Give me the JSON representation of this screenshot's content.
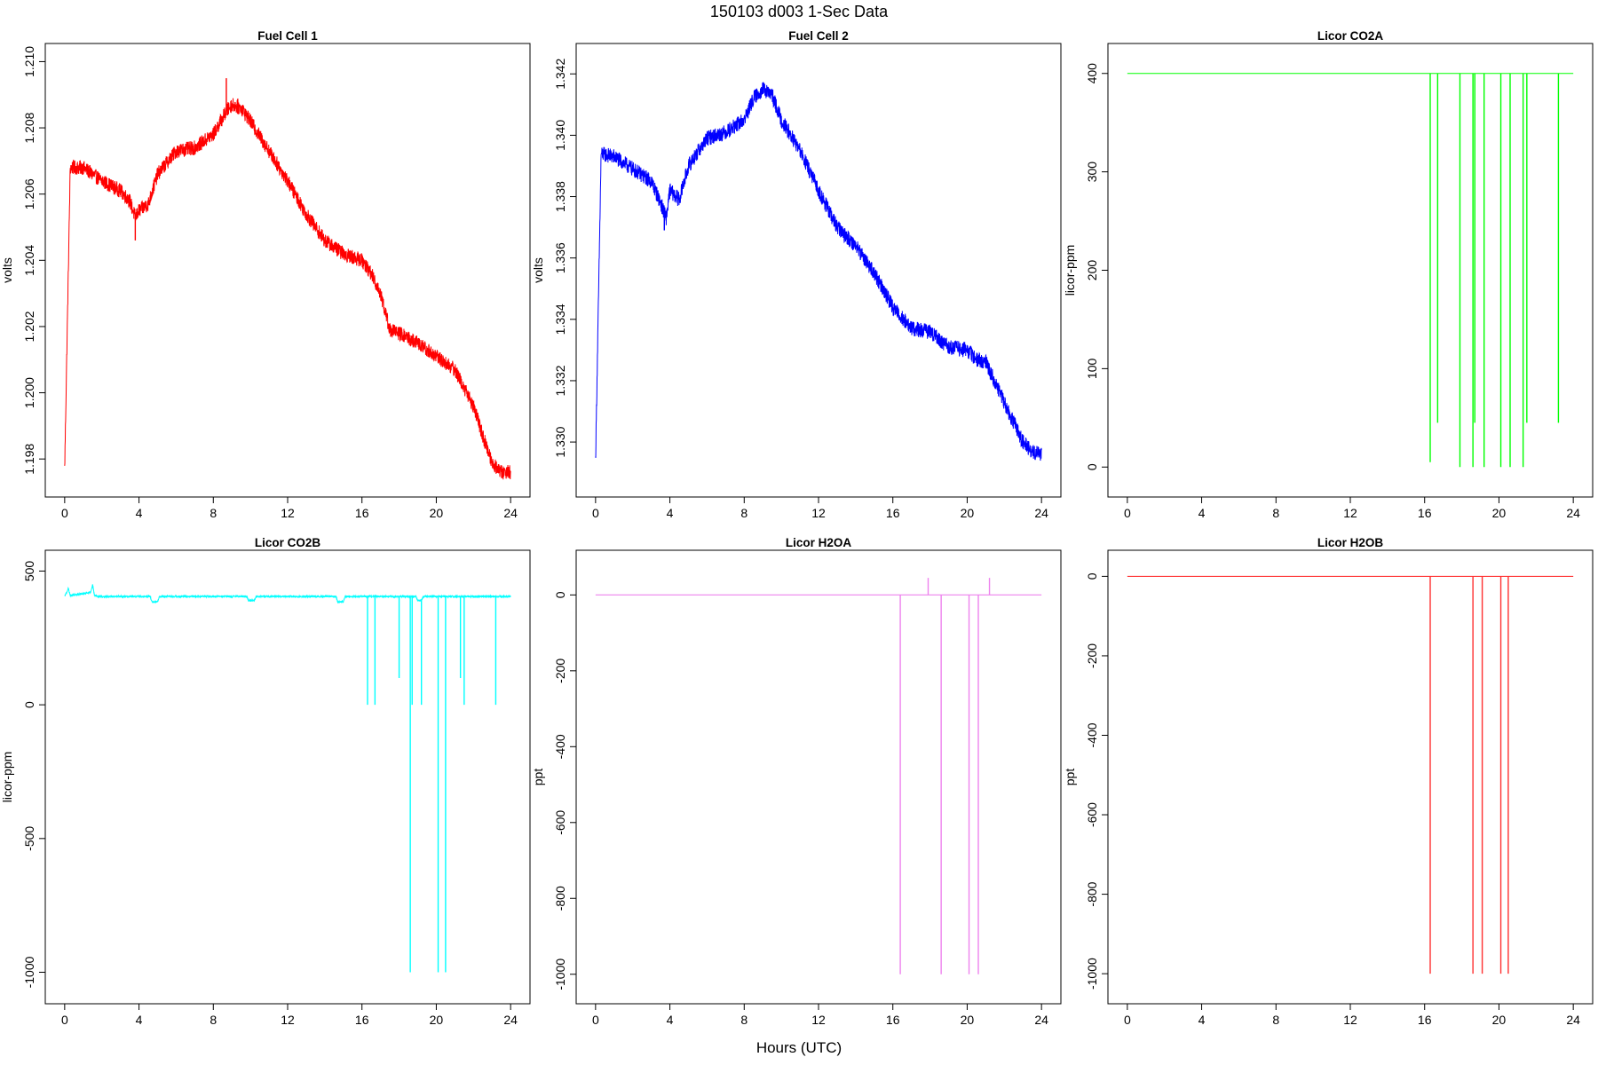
{
  "figure": {
    "title": "150103   d003   1-Sec Data",
    "xlabel": "Hours (UTC)"
  },
  "chart_data": [
    {
      "type": "line",
      "title": "Fuel Cell 1",
      "xlabel": "",
      "ylabel": "volts",
      "color": "#ff0000",
      "xlim": [
        0,
        24
      ],
      "ylim": [
        1.1974,
        1.21
      ],
      "xticks": [
        0,
        4,
        8,
        12,
        16,
        20,
        24
      ],
      "yticks": [
        1.198,
        1.2,
        1.202,
        1.204,
        1.206,
        1.208,
        1.21
      ],
      "ytick_labels": [
        "1.198",
        "1.200",
        "1.202",
        "1.204",
        "1.206",
        "1.208",
        "1.210"
      ],
      "x": [
        0,
        0.3,
        1.0,
        2.0,
        3.0,
        3.5,
        3.8,
        4.0,
        4.5,
        5.0,
        6.0,
        7.0,
        8.0,
        8.7,
        9.0,
        9.5,
        10.0,
        11.0,
        12.0,
        13.0,
        14.0,
        15.0,
        16.0,
        16.5,
        17.0,
        17.5,
        18.0,
        19.0,
        20.0,
        21.0,
        22.0,
        22.5,
        23.0,
        23.5,
        24.0
      ],
      "values": [
        1.1977,
        1.2068,
        1.2068,
        1.2064,
        1.2061,
        1.2058,
        1.2053,
        1.2055,
        1.2057,
        1.2066,
        1.2073,
        1.2074,
        1.2078,
        1.2085,
        1.2087,
        1.2086,
        1.2082,
        1.2073,
        1.2064,
        1.2054,
        1.2046,
        1.2042,
        1.204,
        1.2036,
        1.203,
        1.2019,
        1.2018,
        1.2015,
        1.2011,
        1.2007,
        1.1996,
        1.1987,
        1.1979,
        1.1976,
        1.1976
      ],
      "noise": 0.00022,
      "spikes": [
        {
          "x": 0.0,
          "value": 1.1977
        },
        {
          "x": 8.7,
          "value": 1.2095
        },
        {
          "x": 3.8,
          "value": 1.2046
        }
      ]
    },
    {
      "type": "line",
      "title": "Fuel Cell 2",
      "xlabel": "",
      "ylabel": "volts",
      "color": "#0000ff",
      "xlim": [
        0,
        24
      ],
      "ylim": [
        1.3288,
        1.3424
      ],
      "xticks": [
        0,
        4,
        8,
        12,
        16,
        20,
        24
      ],
      "yticks": [
        1.33,
        1.332,
        1.334,
        1.336,
        1.338,
        1.34,
        1.342
      ],
      "ytick_labels": [
        "1.330",
        "1.332",
        "1.334",
        "1.336",
        "1.338",
        "1.340",
        "1.342"
      ],
      "x": [
        0,
        0.3,
        1.0,
        2.0,
        3.0,
        3.5,
        3.8,
        4.0,
        4.5,
        5.0,
        6.0,
        7.0,
        8.0,
        8.5,
        9.0,
        9.5,
        10.0,
        11.0,
        12.0,
        13.0,
        14.0,
        15.0,
        16.0,
        17.0,
        18.0,
        19.0,
        20.0,
        20.5,
        21.0,
        22.0,
        23.0,
        23.5,
        24.0
      ],
      "values": [
        1.3294,
        1.3394,
        1.3393,
        1.3389,
        1.3385,
        1.3378,
        1.3373,
        1.3382,
        1.3379,
        1.339,
        1.3399,
        1.3401,
        1.3405,
        1.3412,
        1.3415,
        1.3413,
        1.3405,
        1.3395,
        1.3382,
        1.337,
        1.3364,
        1.3355,
        1.3344,
        1.3337,
        1.3336,
        1.3331,
        1.333,
        1.3327,
        1.3326,
        1.3313,
        1.33,
        1.3297,
        1.3296
      ],
      "noise": 0.00025,
      "spikes": [
        {
          "x": 0.0,
          "value": 1.3294
        },
        {
          "x": 3.7,
          "value": 1.3369
        }
      ]
    },
    {
      "type": "line",
      "title": "Licor CO2A",
      "xlabel": "",
      "ylabel": "licor-ppm",
      "color": "#00ff00",
      "xlim": [
        0,
        24
      ],
      "ylim": [
        -12,
        412
      ],
      "xticks": [
        0,
        4,
        8,
        12,
        16,
        20,
        24
      ],
      "yticks": [
        0,
        100,
        200,
        300,
        400
      ],
      "ytick_labels": [
        "0",
        "100",
        "200",
        "300",
        "400"
      ],
      "x": [
        0,
        24
      ],
      "values": [
        400,
        400
      ],
      "noise": 0,
      "spikes": [
        {
          "x": 16.3,
          "value": 5
        },
        {
          "x": 16.7,
          "value": 45
        },
        {
          "x": 17.9,
          "value": 0
        },
        {
          "x": 18.6,
          "value": 0
        },
        {
          "x": 18.7,
          "value": 45
        },
        {
          "x": 19.2,
          "value": 0
        },
        {
          "x": 20.1,
          "value": 0
        },
        {
          "x": 20.6,
          "value": 0
        },
        {
          "x": 21.3,
          "value": 0
        },
        {
          "x": 21.5,
          "value": 45
        },
        {
          "x": 23.2,
          "value": 45
        }
      ]
    },
    {
      "type": "line",
      "title": "Licor CO2B",
      "xlabel": "",
      "ylabel": "licor-ppm",
      "color": "#00ffff",
      "xlim": [
        0,
        24
      ],
      "ylim": [
        -1050,
        510
      ],
      "xticks": [
        0,
        4,
        8,
        12,
        16,
        20,
        24
      ],
      "yticks": [
        -1000,
        -500,
        0,
        500
      ],
      "ytick_labels": [
        "-1000",
        "-500",
        "0",
        "500"
      ],
      "x": [
        0,
        0.2,
        0.3,
        1.4,
        1.5,
        1.6,
        1.8,
        4.6,
        4.7,
        5.0,
        5.1,
        9.8,
        9.9,
        10.2,
        10.3,
        14.6,
        14.7,
        15.0,
        15.1,
        18.9,
        19.0,
        19.2,
        19.3,
        24.0
      ],
      "values": [
        405,
        435,
        408,
        420,
        450,
        410,
        405,
        405,
        385,
        385,
        405,
        405,
        390,
        390,
        405,
        405,
        385,
        385,
        405,
        405,
        390,
        390,
        405,
        405
      ],
      "noise": 3,
      "spikes": [
        {
          "x": 16.3,
          "value": 0
        },
        {
          "x": 16.7,
          "value": 0
        },
        {
          "x": 18.0,
          "value": 100
        },
        {
          "x": 18.6,
          "value": -1000
        },
        {
          "x": 18.7,
          "value": 0
        },
        {
          "x": 19.2,
          "value": 0
        },
        {
          "x": 20.1,
          "value": -1000
        },
        {
          "x": 20.5,
          "value": -1000
        },
        {
          "x": 21.3,
          "value": 100
        },
        {
          "x": 21.5,
          "value": 0
        },
        {
          "x": 23.2,
          "value": 0
        }
      ]
    },
    {
      "type": "line",
      "title": "Licor H2OA",
      "xlabel": "",
      "ylabel": "ppt",
      "color": "#ee82ee",
      "xlim": [
        0,
        24
      ],
      "ylim": [
        -1030,
        70
      ],
      "xticks": [
        0,
        4,
        8,
        12,
        16,
        20,
        24
      ],
      "yticks": [
        -1000,
        -800,
        -600,
        -400,
        -200,
        0
      ],
      "ytick_labels": [
        "-1000",
        "-800",
        "-600",
        "-400",
        "-200",
        "0"
      ],
      "x": [
        0,
        24
      ],
      "values": [
        0,
        0
      ],
      "noise": 0,
      "spikes": [
        {
          "x": 16.4,
          "value": -1000
        },
        {
          "x": 17.9,
          "value": 45
        },
        {
          "x": 18.6,
          "value": -1000
        },
        {
          "x": 20.1,
          "value": -1000
        },
        {
          "x": 20.6,
          "value": -1000
        },
        {
          "x": 21.2,
          "value": 45
        }
      ]
    },
    {
      "type": "line",
      "title": "Licor H2OB",
      "xlabel": "",
      "ylabel": "ppt",
      "color": "#ff3030",
      "xlim": [
        0,
        24
      ],
      "ylim": [
        -1030,
        20
      ],
      "xticks": [
        0,
        4,
        8,
        12,
        16,
        20,
        24
      ],
      "yticks": [
        -1000,
        -800,
        -600,
        -400,
        -200,
        0
      ],
      "ytick_labels": [
        "-1000",
        "-800",
        "-600",
        "-400",
        "-200",
        "0"
      ],
      "x": [
        0,
        24
      ],
      "values": [
        0,
        0
      ],
      "noise": 0,
      "spikes": [
        {
          "x": 16.3,
          "value": -1000
        },
        {
          "x": 18.6,
          "value": -1000
        },
        {
          "x": 19.1,
          "value": -1000
        },
        {
          "x": 20.1,
          "value": -1000
        },
        {
          "x": 20.5,
          "value": -1000
        }
      ]
    }
  ]
}
